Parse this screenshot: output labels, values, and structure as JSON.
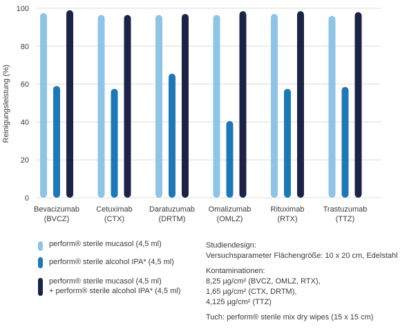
{
  "chart_data": {
    "type": "bar",
    "ylabel": "Reinigungsleistung (%)",
    "ylim": [
      0,
      100
    ],
    "yticks": [
      0,
      20,
      40,
      60,
      80,
      100
    ],
    "grid": true,
    "categories": [
      "Bevacizumab\n(BVCZ)",
      "Cetuximab\n(CTX)",
      "Daratuzumab\n(DRTM)",
      "Omalizumab\n(OMLZ)",
      "Rituximab\n(RTX)",
      "Trastuzumab\n(TTZ)"
    ],
    "series": [
      {
        "name": "perform® sterile mucasol (4,5 ml)",
        "color": "#8ec4e6",
        "values": [
          97.5,
          96.5,
          96.5,
          96.5,
          97,
          96
        ]
      },
      {
        "name": "perform® sterile alcohol IPA* (4,5 ml)",
        "color": "#1d78b8",
        "values": [
          59,
          57.5,
          65.5,
          40.5,
          57.5,
          58.5
        ]
      },
      {
        "name": "perform® sterile mucasol (4,5 ml)\n+ perform® sterile alcohol IPA* (4,5 ml)",
        "color": "#1b2447",
        "values": [
          99,
          96.5,
          97,
          98.5,
          98.5,
          98
        ]
      }
    ]
  },
  "study": {
    "design_title": "Studiendesign:",
    "design_text": "Versuchsparameter Flächengröße: 10 x 20 cm, Edelstahl",
    "contamination_title": "Kontaminationen:",
    "contamination_lines": "8,25 µg/cm² (BVCZ, OMLZ, RTX),\n1,65 µg/cm² (CTX, DRTM),\n4,125 µg/cm² (TTZ)",
    "wipes": "Tuch: perform® sterile mix dry wipes (15 x 15 cm)"
  }
}
